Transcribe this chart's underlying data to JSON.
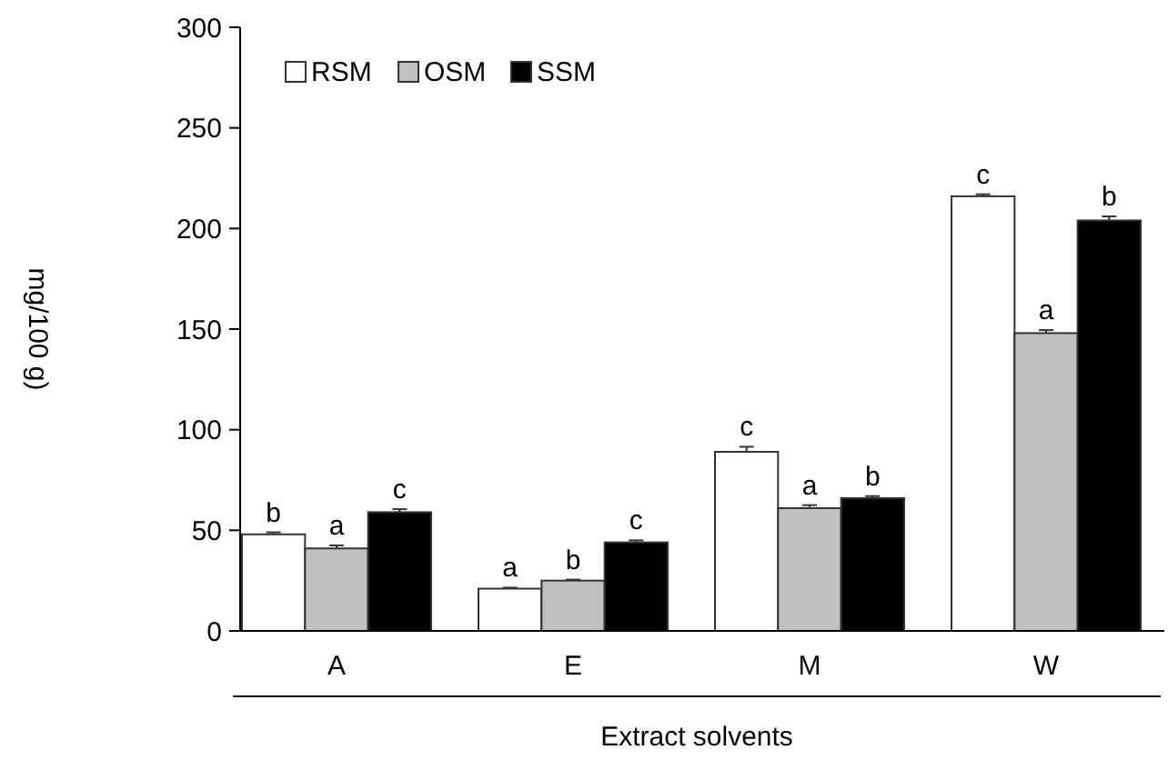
{
  "chart_data": {
    "type": "bar",
    "ylabel": "mg/100 g)",
    "xlabel": "Extract solvents",
    "categories": [
      "A",
      "E",
      "M",
      "W"
    ],
    "series": [
      {
        "name": "RSM",
        "color": "#ffffff",
        "values": [
          48,
          21,
          89,
          216
        ],
        "errors": [
          1,
          0.5,
          2.5,
          1
        ]
      },
      {
        "name": "OSM",
        "color": "#c0c0c0",
        "values": [
          41,
          25,
          61,
          148
        ],
        "errors": [
          1.5,
          0.5,
          1.5,
          1.5
        ]
      },
      {
        "name": "SSM",
        "color": "#000000",
        "values": [
          59,
          44,
          66,
          204
        ],
        "errors": [
          1.5,
          1,
          1,
          2
        ]
      }
    ],
    "ylim": [
      0,
      300
    ],
    "yticks": [
      0,
      50,
      100,
      150,
      200,
      250,
      300
    ],
    "legend": "top left",
    "grid": false,
    "annotations": [
      "b",
      "a",
      "c",
      "a",
      "b",
      "c",
      "c",
      "a",
      "b",
      "c",
      "a",
      "b"
    ]
  }
}
